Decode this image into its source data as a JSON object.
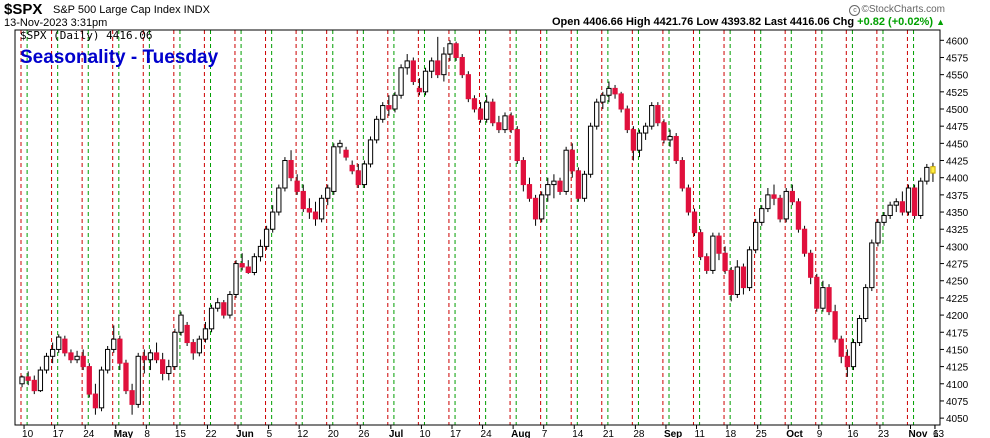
{
  "header": {
    "symbol": "$SPX",
    "description": "S&P 500 Large Cap Index INDX",
    "datetime": "13-Nov-2023 3:31pm",
    "open_label": "Open",
    "open": "4406.66",
    "high_label": "High",
    "high": "4421.76",
    "low_label": "Low",
    "low": "4393.82",
    "last_label": "Last",
    "last": "4416.06",
    "chg_label": "Chg",
    "chg": "+0.82 (+0.02%)",
    "watermark": "©StockCharts.com"
  },
  "colors": {
    "up": "#ffffff",
    "down": "#e0103c",
    "black_candle": "#000000",
    "green_line": "#009e00",
    "red_line": "#cc0000",
    "title": "#0000cc",
    "last_candle": "#ffee44"
  },
  "chart_data": {
    "type": "candlestick",
    "title": "Seasonality - Tuesday",
    "legend": "$SPX (Daily) 4416.06",
    "ylim": [
      4040,
      4615
    ],
    "yticks": [
      4050,
      4075,
      4100,
      4125,
      4150,
      4175,
      4200,
      4225,
      4250,
      4275,
      4300,
      4325,
      4350,
      4375,
      4400,
      4425,
      4450,
      4475,
      4500,
      4525,
      4550,
      4575,
      4600
    ],
    "xtick_labels": [
      {
        "label": "10",
        "bold": false
      },
      {
        "label": "17",
        "bold": false
      },
      {
        "label": "24",
        "bold": false
      },
      {
        "label": "May",
        "bold": true
      },
      {
        "label": "8",
        "bold": false
      },
      {
        "label": "15",
        "bold": false
      },
      {
        "label": "22",
        "bold": false
      },
      {
        "label": "Jun",
        "bold": true
      },
      {
        "label": "5",
        "bold": false
      },
      {
        "label": "12",
        "bold": false
      },
      {
        "label": "20",
        "bold": false
      },
      {
        "label": "26",
        "bold": false
      },
      {
        "label": "Jul",
        "bold": true
      },
      {
        "label": "10",
        "bold": false
      },
      {
        "label": "17",
        "bold": false
      },
      {
        "label": "24",
        "bold": false
      },
      {
        "label": "Aug",
        "bold": true
      },
      {
        "label": "7",
        "bold": false
      },
      {
        "label": "14",
        "bold": false
      },
      {
        "label": "21",
        "bold": false
      },
      {
        "label": "28",
        "bold": false
      },
      {
        "label": "Sep",
        "bold": true
      },
      {
        "label": "11",
        "bold": false
      },
      {
        "label": "18",
        "bold": false
      },
      {
        "label": "25",
        "bold": false
      },
      {
        "label": "Oct",
        "bold": true
      },
      {
        "label": "9",
        "bold": false
      },
      {
        "label": "16",
        "bold": false
      },
      {
        "label": "23",
        "bold": false
      },
      {
        "label": "Nov",
        "bold": true
      },
      {
        "label": "6",
        "bold": false
      },
      {
        "label": "13",
        "bold": false
      }
    ],
    "tuesday_markers": "green dashed vertical lines on Tuesdays; red dashed lines on Mondays",
    "candles": [
      [
        4100,
        4112,
        4095,
        4110
      ],
      [
        4110,
        4118,
        4098,
        4105
      ],
      [
        4105,
        4112,
        4085,
        4090
      ],
      [
        4090,
        4125,
        4088,
        4120
      ],
      [
        4120,
        4145,
        4115,
        4140
      ],
      [
        4140,
        4160,
        4130,
        4150
      ],
      [
        4150,
        4172,
        4145,
        4168
      ],
      [
        4165,
        4170,
        4140,
        4145
      ],
      [
        4145,
        4150,
        4130,
        4135
      ],
      [
        4135,
        4148,
        4130,
        4140
      ],
      [
        4140,
        4150,
        4120,
        4125
      ],
      [
        4125,
        4130,
        4080,
        4085
      ],
      [
        4085,
        4100,
        4055,
        4065
      ],
      [
        4065,
        4125,
        4060,
        4120
      ],
      [
        4120,
        4155,
        4115,
        4150
      ],
      [
        4150,
        4185,
        4145,
        4165
      ],
      [
        4165,
        4170,
        4120,
        4130
      ],
      [
        4130,
        4135,
        4085,
        4090
      ],
      [
        4090,
        4100,
        4055,
        4070
      ],
      [
        4070,
        4145,
        4065,
        4140
      ],
      [
        4140,
        4150,
        4115,
        4135
      ],
      [
        4135,
        4150,
        4120,
        4145
      ],
      [
        4145,
        4160,
        4130,
        4135
      ],
      [
        4135,
        4145,
        4105,
        4115
      ],
      [
        4115,
        4135,
        4105,
        4125
      ],
      [
        4125,
        4180,
        4120,
        4175
      ],
      [
        4175,
        4205,
        4170,
        4200
      ],
      [
        4185,
        4190,
        4155,
        4160
      ],
      [
        4160,
        4165,
        4135,
        4145
      ],
      [
        4145,
        4170,
        4140,
        4165
      ],
      [
        4165,
        4190,
        4160,
        4180
      ],
      [
        4180,
        4215,
        4175,
        4210
      ],
      [
        4210,
        4225,
        4205,
        4218
      ],
      [
        4218,
        4222,
        4195,
        4200
      ],
      [
        4200,
        4235,
        4195,
        4230
      ],
      [
        4230,
        4280,
        4225,
        4275
      ],
      [
        4275,
        4290,
        4265,
        4270
      ],
      [
        4270,
        4280,
        4260,
        4262
      ],
      [
        4262,
        4290,
        4258,
        4285
      ],
      [
        4285,
        4310,
        4278,
        4300
      ],
      [
        4300,
        4330,
        4295,
        4325
      ],
      [
        4325,
        4360,
        4320,
        4350
      ],
      [
        4350,
        4390,
        4345,
        4385
      ],
      [
        4385,
        4430,
        4380,
        4425
      ],
      [
        4425,
        4440,
        4395,
        4400
      ],
      [
        4395,
        4405,
        4375,
        4380
      ],
      [
        4380,
        4390,
        4350,
        4355
      ],
      [
        4355,
        4370,
        4340,
        4350
      ],
      [
        4350,
        4365,
        4330,
        4340
      ],
      [
        4340,
        4375,
        4335,
        4370
      ],
      [
        4370,
        4390,
        4360,
        4385
      ],
      [
        4380,
        4450,
        4375,
        4445
      ],
      [
        4445,
        4455,
        4435,
        4450
      ],
      [
        4440,
        4445,
        4425,
        4430
      ],
      [
        4418,
        4425,
        4405,
        4410
      ],
      [
        4410,
        4420,
        4385,
        4390
      ],
      [
        4390,
        4425,
        4385,
        4420
      ],
      [
        4420,
        4460,
        4415,
        4455
      ],
      [
        4455,
        4490,
        4450,
        4485
      ],
      [
        4485,
        4510,
        4480,
        4505
      ],
      [
        4505,
        4520,
        4490,
        4500
      ],
      [
        4500,
        4525,
        4495,
        4520
      ],
      [
        4520,
        4565,
        4515,
        4560
      ],
      [
        4560,
        4580,
        4550,
        4570
      ],
      [
        4570,
        4575,
        4535,
        4540
      ],
      [
        4530,
        4545,
        4520,
        4525
      ],
      [
        4525,
        4560,
        4520,
        4555
      ],
      [
        4555,
        4575,
        4545,
        4570
      ],
      [
        4570,
        4605,
        4545,
        4550
      ],
      [
        4550,
        4590,
        4540,
        4580
      ],
      [
        4580,
        4600,
        4570,
        4595
      ],
      [
        4595,
        4598,
        4570,
        4575
      ],
      [
        4575,
        4580,
        4545,
        4550
      ],
      [
        4550,
        4555,
        4510,
        4515
      ],
      [
        4515,
        4520,
        4495,
        4500
      ],
      [
        4500,
        4510,
        4480,
        4485
      ],
      [
        4485,
        4520,
        4480,
        4510
      ],
      [
        4510,
        4515,
        4475,
        4480
      ],
      [
        4480,
        4490,
        4465,
        4470
      ],
      [
        4470,
        4495,
        4465,
        4490
      ],
      [
        4490,
        4495,
        4465,
        4470
      ],
      [
        4470,
        4475,
        4420,
        4425
      ],
      [
        4425,
        4430,
        4380,
        4390
      ],
      [
        4390,
        4400,
        4365,
        4370
      ],
      [
        4370,
        4375,
        4330,
        4340
      ],
      [
        4340,
        4380,
        4335,
        4375
      ],
      [
        4375,
        4400,
        4365,
        4390
      ],
      [
        4390,
        4405,
        4370,
        4395
      ],
      [
        4395,
        4400,
        4375,
        4380
      ],
      [
        4380,
        4445,
        4375,
        4440
      ],
      [
        4440,
        4450,
        4400,
        4410
      ],
      [
        4410,
        4415,
        4365,
        4370
      ],
      [
        4370,
        4410,
        4365,
        4405
      ],
      [
        4405,
        4480,
        4400,
        4475
      ],
      [
        4475,
        4515,
        4470,
        4510
      ],
      [
        4510,
        4525,
        4500,
        4520
      ],
      [
        4520,
        4540,
        4510,
        4530
      ],
      [
        4530,
        4535,
        4515,
        4522
      ],
      [
        4522,
        4525,
        4495,
        4500
      ],
      [
        4500,
        4505,
        4465,
        4470
      ],
      [
        4470,
        4475,
        4425,
        4440
      ],
      [
        4440,
        4470,
        4430,
        4465
      ],
      [
        4465,
        4480,
        4455,
        4475
      ],
      [
        4475,
        4510,
        4470,
        4505
      ],
      [
        4505,
        4510,
        4475,
        4480
      ],
      [
        4480,
        4485,
        4450,
        4455
      ],
      [
        4455,
        4470,
        4445,
        4460
      ],
      [
        4460,
        4465,
        4420,
        4425
      ],
      [
        4425,
        4430,
        4380,
        4385
      ],
      [
        4385,
        4390,
        4345,
        4350
      ],
      [
        4350,
        4355,
        4315,
        4320
      ],
      [
        4320,
        4325,
        4280,
        4285
      ],
      [
        4285,
        4290,
        4260,
        4265
      ],
      [
        4265,
        4320,
        4260,
        4315
      ],
      [
        4315,
        4320,
        4280,
        4290
      ],
      [
        4290,
        4300,
        4260,
        4265
      ],
      [
        4265,
        4270,
        4220,
        4230
      ],
      [
        4230,
        4280,
        4225,
        4270
      ],
      [
        4270,
        4275,
        4230,
        4240
      ],
      [
        4240,
        4300,
        4235,
        4295
      ],
      [
        4295,
        4340,
        4290,
        4335
      ],
      [
        4335,
        4360,
        4330,
        4355
      ],
      [
        4355,
        4385,
        4350,
        4375
      ],
      [
        4375,
        4390,
        4360,
        4370
      ],
      [
        4370,
        4375,
        4335,
        4340
      ],
      [
        4340,
        4385,
        4335,
        4380
      ],
      [
        4380,
        4390,
        4360,
        4365
      ],
      [
        4365,
        4370,
        4320,
        4325
      ],
      [
        4325,
        4330,
        4285,
        4290
      ],
      [
        4290,
        4295,
        4245,
        4255
      ],
      [
        4255,
        4260,
        4205,
        4210
      ],
      [
        4210,
        4250,
        4205,
        4240
      ],
      [
        4240,
        4245,
        4200,
        4205
      ],
      [
        4205,
        4215,
        4160,
        4165
      ],
      [
        4165,
        4170,
        4130,
        4140
      ],
      [
        4140,
        4150,
        4110,
        4125
      ],
      [
        4125,
        4165,
        4120,
        4160
      ],
      [
        4160,
        4200,
        4155,
        4195
      ],
      [
        4195,
        4245,
        4190,
        4240
      ],
      [
        4240,
        4310,
        4235,
        4305
      ],
      [
        4305,
        4340,
        4300,
        4335
      ],
      [
        4335,
        4350,
        4330,
        4345
      ],
      [
        4345,
        4365,
        4340,
        4360
      ],
      [
        4360,
        4370,
        4350,
        4365
      ],
      [
        4365,
        4380,
        4345,
        4350
      ],
      [
        4350,
        4390,
        4345,
        4385
      ],
      [
        4385,
        4390,
        4340,
        4345
      ],
      [
        4345,
        4400,
        4340,
        4395
      ],
      [
        4395,
        4420,
        4390,
        4415
      ],
      [
        4406.66,
        4421.76,
        4393.82,
        4416.06
      ]
    ]
  }
}
